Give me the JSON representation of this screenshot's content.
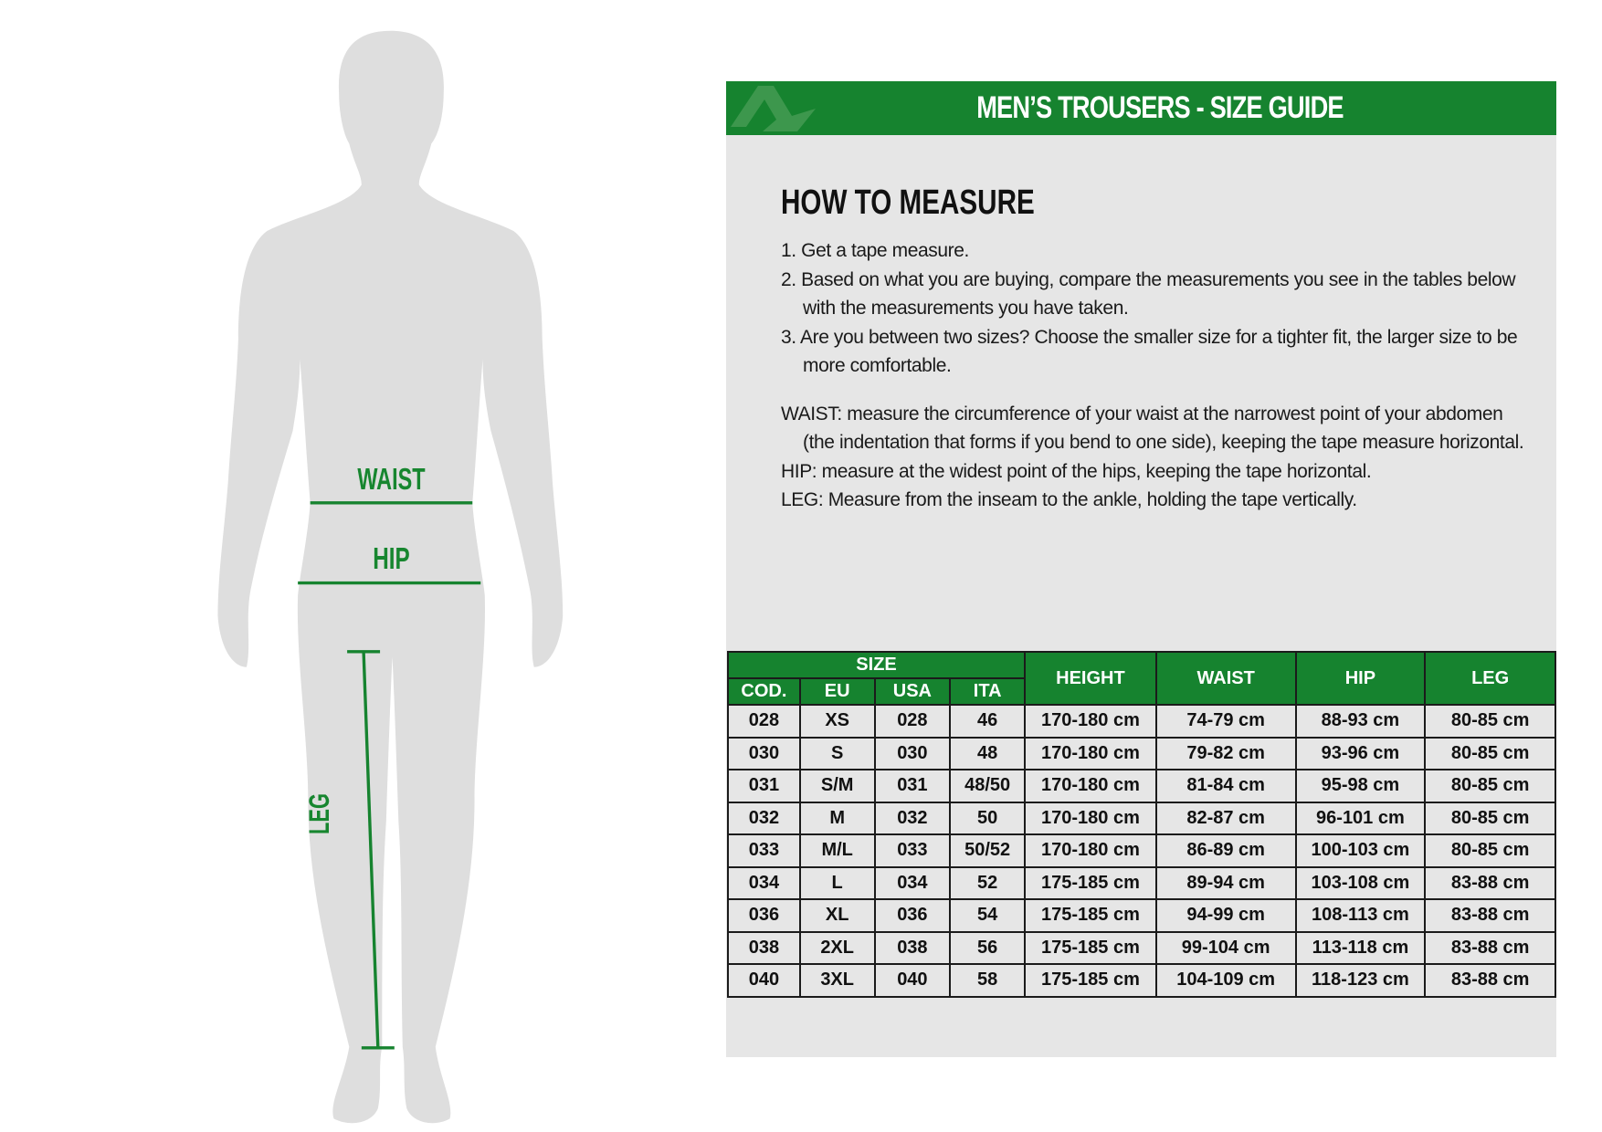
{
  "figure": {
    "labels": {
      "waist": "WAIST",
      "hip": "HIP",
      "leg": "LEG"
    },
    "accent": "#16832f",
    "silhouette_color": "#dedede"
  },
  "banner": {
    "title": "MEN’S TROUSERS - SIZE GUIDE",
    "logo": "brand-logo-a"
  },
  "how_to": {
    "title": "HOW TO MEASURE",
    "steps": [
      "1. Get a tape measure.",
      "2. Based on what you are buying, compare the measurements you see in the tables below with the measurements you have taken.",
      "3. Are you between two sizes? Choose the smaller size for a tighter fit, the larger size to be more comfortable."
    ],
    "notes": [
      "WAIST: measure the circumference of your waist at the narrowest point of your abdomen (the indentation that forms if you bend to one side), keeping the tape measure horizontal.",
      "HIP: measure at the widest point of the hips, keeping the tape horizontal.",
      "LEG: Measure from the inseam to the ankle, holding the tape vertically."
    ]
  },
  "table": {
    "group_header": "SIZE",
    "size_headers": [
      "COD.",
      "EU",
      "USA",
      "ITA"
    ],
    "headers": [
      "HEIGHT",
      "WAIST",
      "HIP",
      "LEG"
    ],
    "rows": [
      [
        "028",
        "XS",
        "028",
        "46",
        "170-180 cm",
        "74-79 cm",
        "88-93 cm",
        "80-85 cm"
      ],
      [
        "030",
        "S",
        "030",
        "48",
        "170-180 cm",
        "79-82 cm",
        "93-96 cm",
        "80-85 cm"
      ],
      [
        "031",
        "S/M",
        "031",
        "48/50",
        "170-180 cm",
        "81-84 cm",
        "95-98 cm",
        "80-85 cm"
      ],
      [
        "032",
        "M",
        "032",
        "50",
        "170-180 cm",
        "82-87 cm",
        "96-101 cm",
        "80-85 cm"
      ],
      [
        "033",
        "M/L",
        "033",
        "50/52",
        "170-180 cm",
        "86-89 cm",
        "100-103 cm",
        "80-85 cm"
      ],
      [
        "034",
        "L",
        "034",
        "52",
        "175-185 cm",
        "89-94 cm",
        "103-108 cm",
        "83-88 cm"
      ],
      [
        "036",
        "XL",
        "036",
        "54",
        "175-185 cm",
        "94-99 cm",
        "108-113 cm",
        "83-88 cm"
      ],
      [
        "038",
        "2XL",
        "038",
        "56",
        "175-185 cm",
        "99-104 cm",
        "113-118 cm",
        "83-88 cm"
      ],
      [
        "040",
        "3XL",
        "040",
        "58",
        "175-185 cm",
        "104-109 cm",
        "118-123 cm",
        "83-88 cm"
      ]
    ]
  }
}
